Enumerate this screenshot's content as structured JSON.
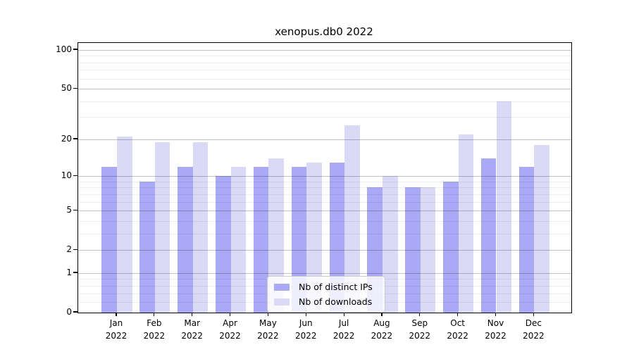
{
  "title": "xenopus.db0 2022",
  "chart_data": {
    "type": "bar",
    "categories": [
      "Jan",
      "Feb",
      "Mar",
      "Apr",
      "May",
      "Jun",
      "Jul",
      "Aug",
      "Sep",
      "Oct",
      "Nov",
      "Dec"
    ],
    "category_year": "2022",
    "series": [
      {
        "name": "Nb of distinct IPs",
        "color": "#a9a9f5",
        "values": [
          12,
          9,
          12,
          10,
          12,
          12,
          13,
          8,
          8,
          9,
          14,
          12
        ]
      },
      {
        "name": "Nb of downloads",
        "color": "#dadaf7",
        "values": [
          21,
          19,
          19,
          12,
          14,
          13,
          26,
          10,
          8,
          22,
          40,
          18
        ]
      }
    ],
    "title": "xenopus.db0 2022",
    "xlabel": "",
    "ylabel": "",
    "yscale": "log10(1+x)",
    "ylim": [
      0,
      100
    ],
    "yticks": [
      0,
      1,
      2,
      5,
      10,
      20,
      50,
      100
    ],
    "minor_yticks": [
      0.2,
      0.4,
      0.6,
      0.8,
      3,
      4,
      6,
      7,
      8,
      9,
      30,
      40,
      60,
      70,
      80,
      90
    ],
    "grid": "on",
    "legend_position": "lower center"
  },
  "colors": {
    "axis": "#000000",
    "major_grid": "#c2c2c2",
    "minor_grid": "#ededed",
    "background": "#ffffff"
  }
}
